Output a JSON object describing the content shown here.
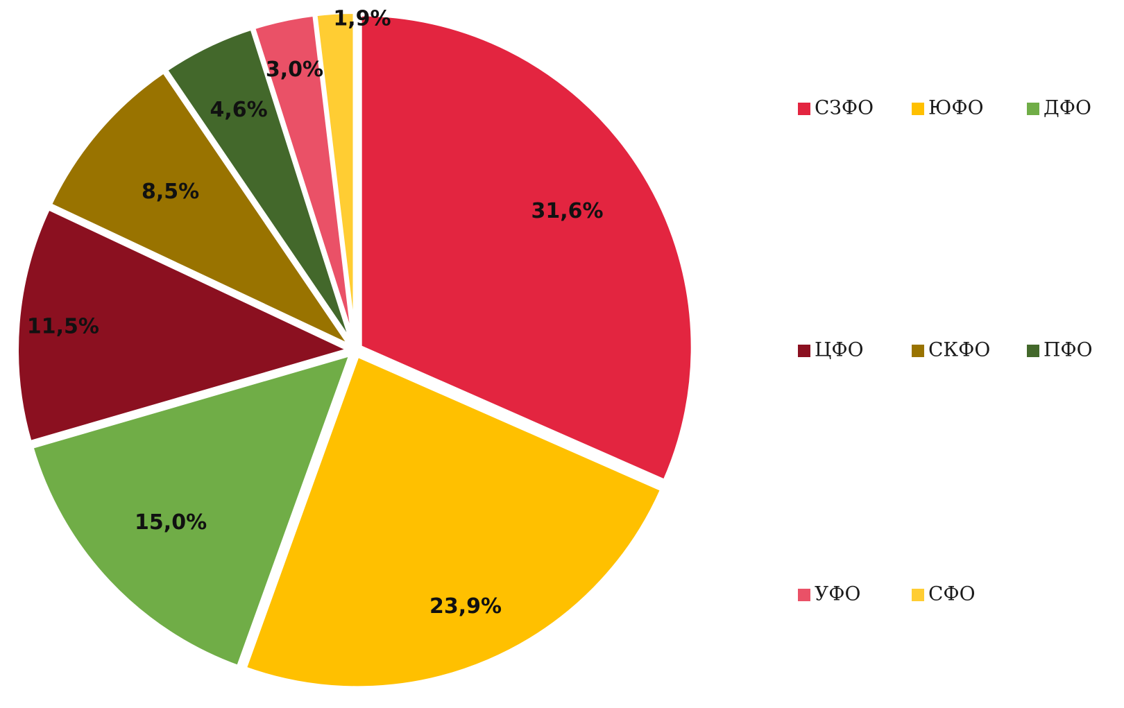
{
  "chart_data": {
    "type": "pie",
    "title": "",
    "slices": [
      {
        "label": "СЗФО",
        "value": 31.6,
        "display": "31,6%",
        "color": "#E32540"
      },
      {
        "label": "ЮФО",
        "value": 23.9,
        "display": "23,9%",
        "color": "#FFC000"
      },
      {
        "label": "ДФО",
        "value": 15.0,
        "display": "15,0%",
        "color": "#70AD47"
      },
      {
        "label": "ЦФО",
        "value": 11.5,
        "display": "11,5%",
        "color": "#8B1020"
      },
      {
        "label": "СКФО",
        "value": 8.5,
        "display": "8,5%",
        "color": "#997300"
      },
      {
        "label": "ПФО",
        "value": 4.6,
        "display": "4,6%",
        "color": "#43682B"
      },
      {
        "label": "УФО",
        "value": 3.0,
        "display": "3,0%",
        "color": "#EA5167"
      },
      {
        "label": "СФО",
        "value": 1.9,
        "display": "1,9%",
        "color": "#FFCD33"
      }
    ],
    "start_angle": "12 o'clock",
    "direction": "clockwise",
    "exploded": true,
    "legend_position": "right"
  }
}
